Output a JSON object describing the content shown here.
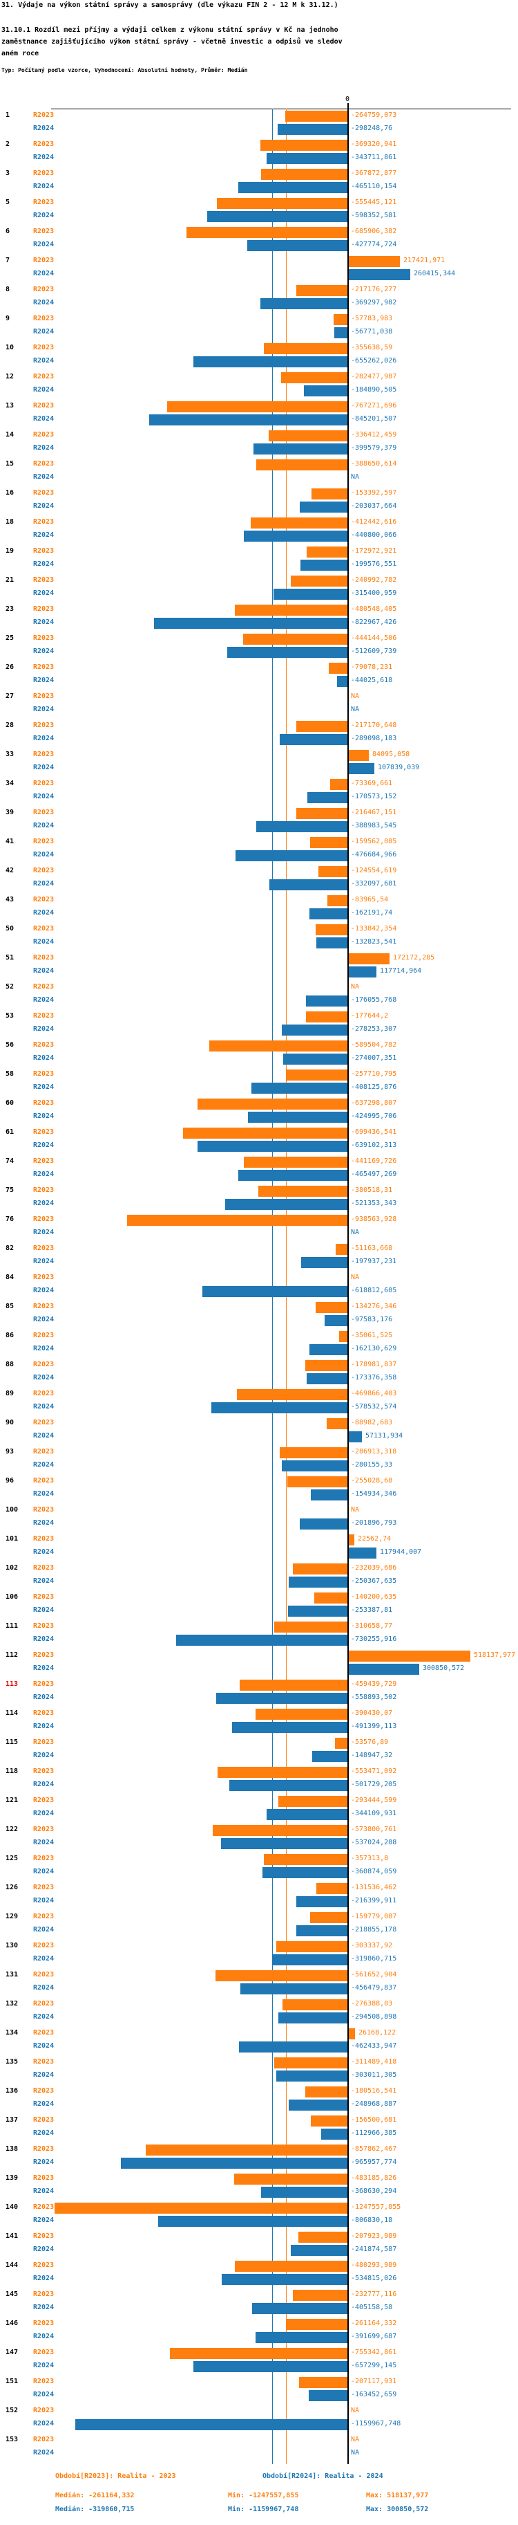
{
  "header": {
    "title": "31. Výdaje na výkon státní správy a samosprávy (dle výkazu FIN 2 - 12 M k 31.12.)",
    "subtitle": "31.10.1 Rozdíl mezi příjmy a výdaji celkem z výkonu státní správy v Kč na jednoho zaměstnance zajišťujícího výkon státní správy - včetně investic a odpisů ve sledovaném roce",
    "meta": "Typ: Počítaný podle vzorce, Vyhodnocení: Absolutní hodnoty, Průměr: Medián"
  },
  "chart_data": {
    "type": "bar",
    "orientation": "horizontal",
    "zero_tick_label": "0",
    "na_label": "NA",
    "series": [
      "R2023",
      "R2024"
    ],
    "series_colors": {
      "R2023": "#ff7f0e",
      "R2024": "#1f77b4"
    },
    "highlight_color": "#e60000",
    "highlight_rank": "113",
    "xlim": [
      -1265000,
      695000
    ],
    "medians": {
      "R2023": -261164.332,
      "R2024": -319860.715
    },
    "rows": [
      {
        "rank": "1",
        "r2023": "-264759,073",
        "r2024": "-298248,76"
      },
      {
        "rank": "2",
        "r2023": "-369320,941",
        "r2024": "-343711,861"
      },
      {
        "rank": "3",
        "r2023": "-367872,877",
        "r2024": "-465110,154"
      },
      {
        "rank": "5",
        "r2023": "-555445,121",
        "r2024": "-598352,581"
      },
      {
        "rank": "6",
        "r2023": "-685906,382",
        "r2024": "-427774,724"
      },
      {
        "rank": "7",
        "r2023": "217421,971",
        "r2024": "260415,344"
      },
      {
        "rank": "8",
        "r2023": "-217176,277",
        "r2024": "-369297,982"
      },
      {
        "rank": "9",
        "r2023": "-57783,983",
        "r2024": "-56771,038"
      },
      {
        "rank": "10",
        "r2023": "-355638,59",
        "r2024": "-655262,026"
      },
      {
        "rank": "12",
        "r2023": "-282477,987",
        "r2024": "-184890,505"
      },
      {
        "rank": "13",
        "r2023": "-767271,696",
        "r2024": "-845201,507"
      },
      {
        "rank": "14",
        "r2023": "-336412,459",
        "r2024": "-399579,379"
      },
      {
        "rank": "15",
        "r2023": "-388650,614",
        "r2024": "NA"
      },
      {
        "rank": "16",
        "r2023": "-153392,597",
        "r2024": "-203037,664"
      },
      {
        "rank": "18",
        "r2023": "-412442,616",
        "r2024": "-440800,066"
      },
      {
        "rank": "19",
        "r2023": "-172972,921",
        "r2024": "-199576,551"
      },
      {
        "rank": "21",
        "r2023": "-240992,782",
        "r2024": "-315400,959"
      },
      {
        "rank": "23",
        "r2023": "-480548,405",
        "r2024": "-822967,426"
      },
      {
        "rank": "25",
        "r2023": "-444144,506",
        "r2024": "-512609,739"
      },
      {
        "rank": "26",
        "r2023": "-79078,231",
        "r2024": "-44025,618"
      },
      {
        "rank": "27",
        "r2023": "NA",
        "r2024": "NA"
      },
      {
        "rank": "28",
        "r2023": "-217170,648",
        "r2024": "-289098,183"
      },
      {
        "rank": "33",
        "r2023": "84095,058",
        "r2024": "107839,039"
      },
      {
        "rank": "34",
        "r2023": "-73369,661",
        "r2024": "-170573,152"
      },
      {
        "rank": "39",
        "r2023": "-216467,151",
        "r2024": "-388983,545"
      },
      {
        "rank": "41",
        "r2023": "-159562,085",
        "r2024": "-476684,966"
      },
      {
        "rank": "42",
        "r2023": "-124554,619",
        "r2024": "-332097,681"
      },
      {
        "rank": "43",
        "r2023": "-83965,54",
        "r2024": "-162191,74"
      },
      {
        "rank": "50",
        "r2023": "-133842,354",
        "r2024": "-132823,541"
      },
      {
        "rank": "51",
        "r2023": "172172,285",
        "r2024": "117714,964"
      },
      {
        "rank": "52",
        "r2023": "NA",
        "r2024": "-176055,768"
      },
      {
        "rank": "53",
        "r2023": "-177644,2",
        "r2024": "-278253,307"
      },
      {
        "rank": "56",
        "r2023": "-589504,782",
        "r2024": "-274007,351"
      },
      {
        "rank": "58",
        "r2023": "-257710,795",
        "r2024": "-408125,876"
      },
      {
        "rank": "60",
        "r2023": "-637298,807",
        "r2024": "-424995,706"
      },
      {
        "rank": "61",
        "r2023": "-699436,541",
        "r2024": "-639102,313"
      },
      {
        "rank": "74",
        "r2023": "-441169,726",
        "r2024": "-465497,269"
      },
      {
        "rank": "75",
        "r2023": "-380518,31",
        "r2024": "-521353,343"
      },
      {
        "rank": "76",
        "r2023": "-938563,928",
        "r2024": "NA"
      },
      {
        "rank": "82",
        "r2023": "-51163,668",
        "r2024": "-197937,231"
      },
      {
        "rank": "84",
        "r2023": "NA",
        "r2024": "-618812,605"
      },
      {
        "rank": "85",
        "r2023": "-134276,346",
        "r2024": "-97583,176"
      },
      {
        "rank": "86",
        "r2023": "-35061,525",
        "r2024": "-162130,629"
      },
      {
        "rank": "88",
        "r2023": "-178981,837",
        "r2024": "-173376,358"
      },
      {
        "rank": "89",
        "r2023": "-469866,403",
        "r2024": "-578532,574"
      },
      {
        "rank": "90",
        "r2023": "-88982,683",
        "r2024": "57131,934"
      },
      {
        "rank": "93",
        "r2023": "-286913,318",
        "r2024": "-280155,33"
      },
      {
        "rank": "96",
        "r2023": "-255028,68",
        "r2024": "-154934,346"
      },
      {
        "rank": "100",
        "r2023": "NA",
        "r2024": "-201896,793"
      },
      {
        "rank": "101",
        "r2023": "22562,74",
        "r2024": "117944,007"
      },
      {
        "rank": "102",
        "r2023": "-232039,686",
        "r2024": "-250367,635"
      },
      {
        "rank": "106",
        "r2023": "-140200,635",
        "r2024": "-253387,81"
      },
      {
        "rank": "111",
        "r2023": "-310658,77",
        "r2024": "-730255,916"
      },
      {
        "rank": "112",
        "r2023": "518137,977",
        "r2024": "300850,572"
      },
      {
        "rank": "113",
        "r2023": "-459439,729",
        "r2024": "-558893,502"
      },
      {
        "rank": "114",
        "r2023": "-390430,07",
        "r2024": "-491399,113"
      },
      {
        "rank": "115",
        "r2023": "-53576,89",
        "r2024": "-148947,32"
      },
      {
        "rank": "118",
        "r2023": "-553471,092",
        "r2024": "-501729,205"
      },
      {
        "rank": "121",
        "r2023": "-293444,599",
        "r2024": "-344109,931"
      },
      {
        "rank": "122",
        "r2023": "-573800,761",
        "r2024": "-537024,288"
      },
      {
        "rank": "125",
        "r2023": "-357313,8",
        "r2024": "-360874,059"
      },
      {
        "rank": "126",
        "r2023": "-131536,462",
        "r2024": "-216399,911"
      },
      {
        "rank": "129",
        "r2023": "-159779,087",
        "r2024": "-218855,178"
      },
      {
        "rank": "130",
        "r2023": "-303337,92",
        "r2024": "-319860,715"
      },
      {
        "rank": "131",
        "r2023": "-561652,904",
        "r2024": "-456479,837"
      },
      {
        "rank": "132",
        "r2023": "-276388,03",
        "r2024": "-294508,898"
      },
      {
        "rank": "134",
        "r2023": "26168,122",
        "r2024": "-462433,947"
      },
      {
        "rank": "135",
        "r2023": "-311489,418",
        "r2024": "-303011,305"
      },
      {
        "rank": "136",
        "r2023": "-180516,541",
        "r2024": "-248968,887"
      },
      {
        "rank": "137",
        "r2023": "-156500,681",
        "r2024": "-112966,385"
      },
      {
        "rank": "138",
        "r2023": "-857862,467",
        "r2024": "-965957,774"
      },
      {
        "rank": "139",
        "r2023": "-483185,826",
        "r2024": "-368630,294"
      },
      {
        "rank": "140",
        "r2023": "-1247557,855",
        "r2024": "-806830,18"
      },
      {
        "rank": "141",
        "r2023": "-207923,989",
        "r2024": "-241874,587"
      },
      {
        "rank": "144",
        "r2023": "-480293,989",
        "r2024": "-534815,026"
      },
      {
        "rank": "145",
        "r2023": "-232777,116",
        "r2024": "-405158,58"
      },
      {
        "rank": "146",
        "r2023": "-261164,332",
        "r2024": "-391699,687"
      },
      {
        "rank": "147",
        "r2023": "-755342,861",
        "r2024": "-657299,145"
      },
      {
        "rank": "151",
        "r2023": "-207117,931",
        "r2024": "-163452,659"
      },
      {
        "rank": "152",
        "r2023": "NA",
        "r2024": "-1159967,748"
      },
      {
        "rank": "153",
        "r2023": "NA",
        "r2024": "NA"
      }
    ]
  },
  "legend": {
    "period_2023": "Období[R2023]: Realita - 2023",
    "period_2024": "Období[R2024]: Realita - 2024",
    "stats_2023": {
      "median": "Medián: -261164,332",
      "min": "Min: -1247557,855",
      "max": "Max: 518137,977"
    },
    "stats_2024": {
      "median": "Medián: -319860,715",
      "min": "Min: -1159967,748",
      "max": "Max: 300850,572"
    }
  }
}
